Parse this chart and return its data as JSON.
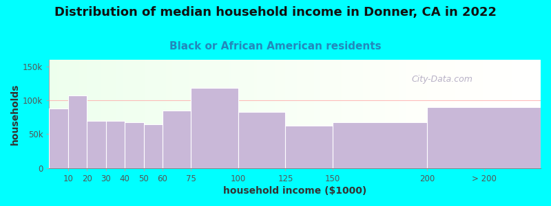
{
  "title": "Distribution of median household income in Donner, CA in 2022",
  "subtitle": "Black or African American residents",
  "xlabel": "household income ($1000)",
  "ylabel": "households",
  "background_color": "#00FFFF",
  "bar_color": "#c9b8d8",
  "bar_edge_color": "#ffffff",
  "categories": [
    "10",
    "20",
    "30",
    "40",
    "50",
    "60",
    "75",
    "100",
    "125",
    "150",
    "200",
    "> 200"
  ],
  "left_edges": [
    0,
    10,
    20,
    30,
    40,
    50,
    60,
    75,
    100,
    125,
    150,
    200
  ],
  "widths": [
    10,
    10,
    10,
    10,
    10,
    10,
    15,
    25,
    25,
    25,
    50,
    60
  ],
  "values": [
    88000,
    107000,
    70000,
    70000,
    68000,
    65000,
    85000,
    118000,
    83000,
    63000,
    68000,
    90000
  ],
  "ylim": [
    0,
    160000
  ],
  "yticks": [
    0,
    50000,
    100000,
    150000
  ],
  "ytick_labels": [
    "0",
    "50k",
    "100k",
    "150k"
  ],
  "xtick_positions": [
    10,
    20,
    30,
    40,
    50,
    60,
    75,
    100,
    125,
    150,
    200,
    230
  ],
  "xtick_labels": [
    "10",
    "20",
    "30",
    "40",
    "50",
    "60",
    "75",
    "100",
    "125",
    "150",
    "200",
    "> 200"
  ],
  "title_fontsize": 13,
  "subtitle_fontsize": 11,
  "axis_label_fontsize": 10,
  "watermark_text": "City-Data.com",
  "watermark_color": "#b0a8c0",
  "red_line_y": 100000,
  "plot_xlim": [
    0,
    260
  ]
}
